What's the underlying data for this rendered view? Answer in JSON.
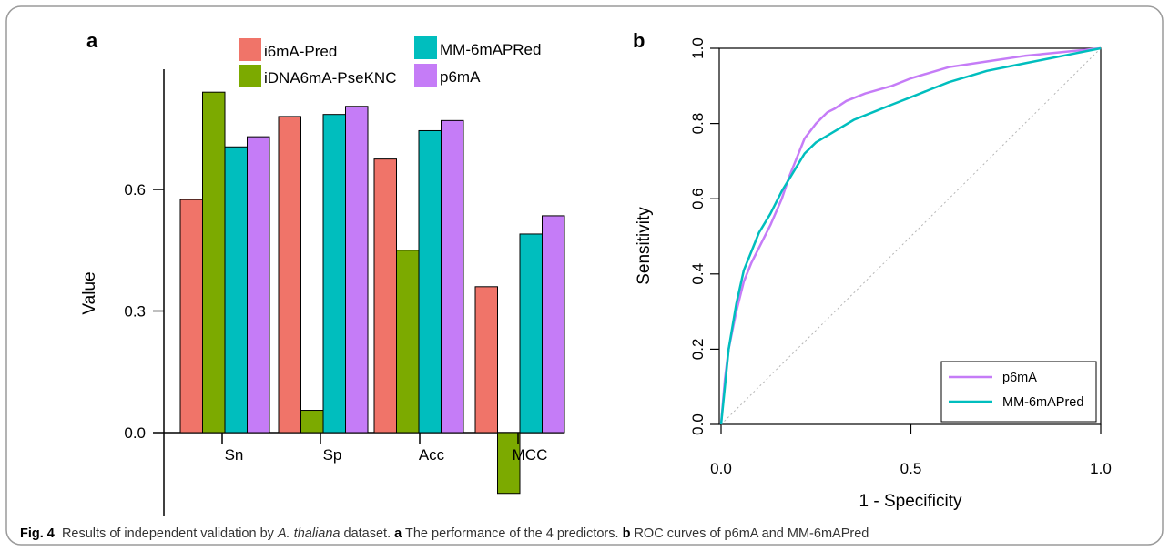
{
  "figure": {
    "caption": {
      "fig_label": "Fig. 4",
      "text_1": "Results of independent validation by",
      "species": "A. thaliana",
      "text_2": "dataset.",
      "panel_a_label": "a",
      "panel_a_text": "The performance of the 4 predictors.",
      "panel_b_label": "b",
      "panel_b_text": "ROC curves of p6mA and MM-6mAPred"
    }
  },
  "chart_data": [
    {
      "panel": "a",
      "type": "bar",
      "ylabel": "Value",
      "xlabel": "",
      "categories": [
        "Sn",
        "Sp",
        "Acc",
        "MCC"
      ],
      "yticks": [
        "0.0",
        "0.3",
        "0.6"
      ],
      "ylim": [
        -0.16,
        0.85
      ],
      "legend_position": "top",
      "series": [
        {
          "name": "i6mA-Pred",
          "color": "#f07469",
          "values": [
            0.575,
            0.78,
            0.675,
            0.36
          ]
        },
        {
          "name": "iDNA6mA-PseKNC",
          "color": "#7caa00",
          "values": [
            0.84,
            0.055,
            0.45,
            -0.15
          ]
        },
        {
          "name": "MM-6mAPRed",
          "color": "#00bebe",
          "values": [
            0.705,
            0.785,
            0.745,
            0.49
          ]
        },
        {
          "name": "p6mA",
          "color": "#c57cf7",
          "values": [
            0.73,
            0.805,
            0.77,
            0.535
          ]
        }
      ]
    },
    {
      "panel": "b",
      "type": "line",
      "xlabel": "1 - Specificity",
      "ylabel": "Sensitivity",
      "xlim": [
        0,
        1
      ],
      "ylim": [
        0,
        1
      ],
      "xticks": [
        "0.0",
        "0.5",
        "1.0"
      ],
      "yticks": [
        "0.0",
        "0.2",
        "0.4",
        "0.6",
        "0.8",
        "1.0"
      ],
      "legend_position": "bottom-right",
      "series": [
        {
          "name": "p6mA",
          "color": "#c57cf7",
          "x": [
            0,
            0.01,
            0.02,
            0.04,
            0.06,
            0.08,
            0.1,
            0.13,
            0.16,
            0.18,
            0.2,
            0.22,
            0.25,
            0.28,
            0.3,
            0.33,
            0.38,
            0.45,
            0.5,
            0.55,
            0.6,
            0.7,
            0.8,
            0.9,
            1.0
          ],
          "y": [
            0,
            0.12,
            0.2,
            0.3,
            0.38,
            0.43,
            0.47,
            0.53,
            0.6,
            0.66,
            0.71,
            0.76,
            0.8,
            0.83,
            0.84,
            0.86,
            0.88,
            0.9,
            0.92,
            0.935,
            0.95,
            0.965,
            0.98,
            0.99,
            1.0
          ]
        },
        {
          "name": "MM-6mAPred",
          "color": "#00bebe",
          "x": [
            0,
            0.01,
            0.02,
            0.04,
            0.06,
            0.08,
            0.1,
            0.13,
            0.16,
            0.19,
            0.22,
            0.25,
            0.3,
            0.35,
            0.4,
            0.45,
            0.5,
            0.55,
            0.6,
            0.7,
            0.8,
            0.9,
            1.0
          ],
          "y": [
            0,
            0.1,
            0.2,
            0.32,
            0.41,
            0.46,
            0.51,
            0.56,
            0.62,
            0.67,
            0.72,
            0.75,
            0.78,
            0.81,
            0.83,
            0.85,
            0.87,
            0.89,
            0.91,
            0.94,
            0.96,
            0.98,
            1.0
          ]
        }
      ],
      "reference_line": "diagonal"
    }
  ]
}
